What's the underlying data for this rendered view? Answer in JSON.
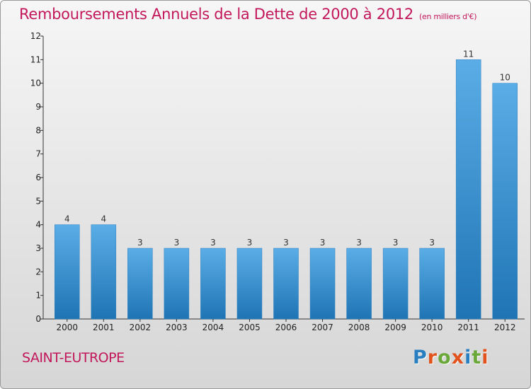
{
  "header": {
    "title": "Remboursements Annuels de la Dette de 2000 à 2012",
    "unit": "(en milliers d'€)"
  },
  "footer": {
    "commune": "SAINT-EUTROPE",
    "logo_text": "Proxiti"
  },
  "colors": {
    "title": "#c2185b",
    "bar_top": "#5aade6",
    "bar_bottom": "#1f74b4",
    "logo_letters": [
      "#2a7fc0",
      "#e1521c",
      "#6aa83a",
      "#e1521c",
      "#2a7fc0",
      "#6aa83a",
      "#e1521c"
    ]
  },
  "chart_data": {
    "type": "bar",
    "title": "Remboursements Annuels de la Dette de 2000 à 2012",
    "categories": [
      "2000",
      "2001",
      "2002",
      "2003",
      "2004",
      "2005",
      "2006",
      "2007",
      "2008",
      "2009",
      "2010",
      "2011",
      "2012"
    ],
    "values": [
      4,
      4,
      3,
      3,
      3,
      3,
      3,
      3,
      3,
      3,
      3,
      11,
      10
    ],
    "yticks": [
      "0",
      "1",
      "2",
      "3",
      "4",
      "5",
      "6",
      "7",
      "8",
      "9",
      "10",
      "11",
      "12"
    ],
    "ylim": [
      0,
      12
    ],
    "xlabel": "",
    "ylabel": "",
    "grid": false,
    "data_labels": true
  }
}
